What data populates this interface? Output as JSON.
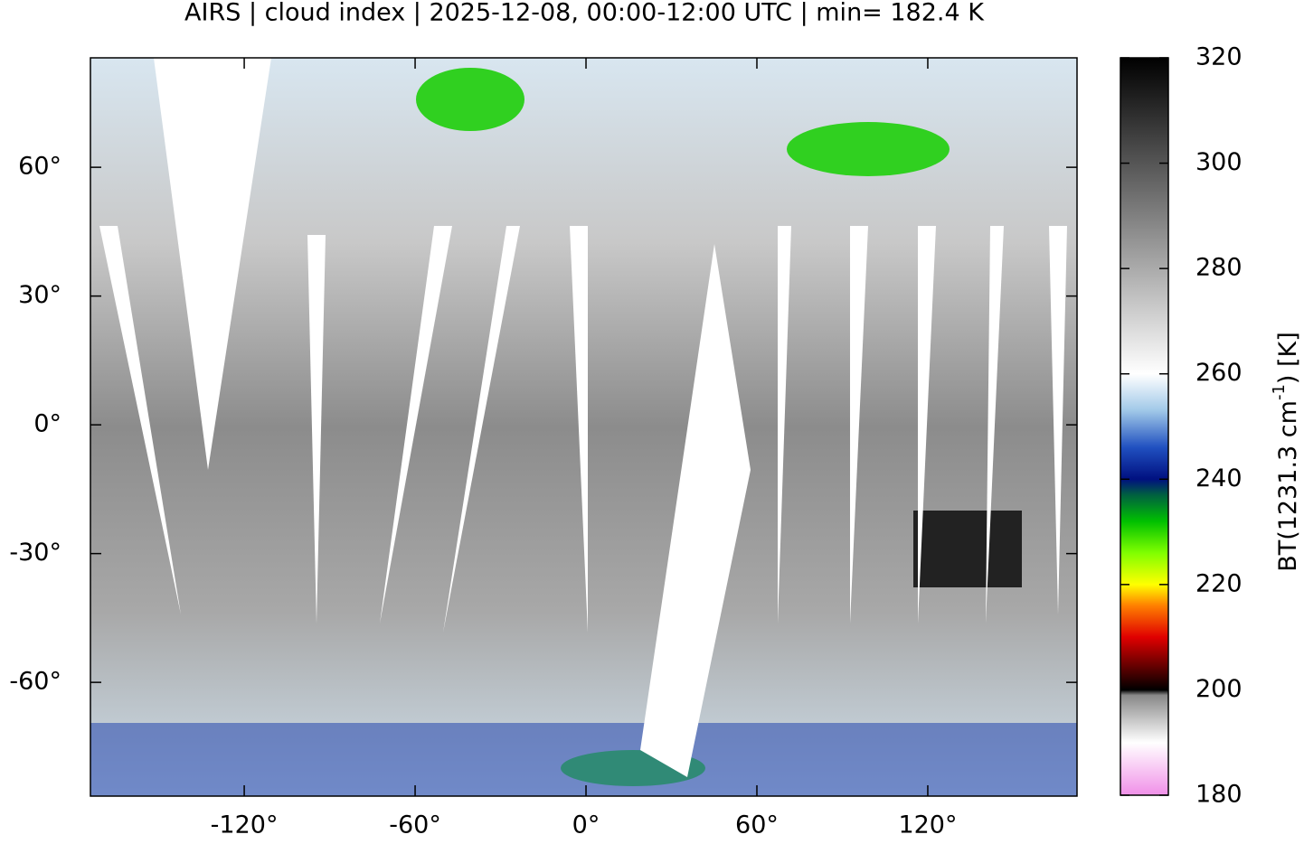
{
  "chart_data": {
    "type": "map",
    "title": "AIRS | cloud index | 2025-12-08, 00:00-12:00 UTC | min= 182.4 K",
    "xlim": [
      -174,
      172.4
    ],
    "ylim": [
      -86.5,
      85.5
    ],
    "xticks": [
      {
        "value": -120,
        "label": "-120°"
      },
      {
        "value": -60,
        "label": "-60°"
      },
      {
        "value": 0,
        "label": "0°"
      },
      {
        "value": 60,
        "label": "60°"
      },
      {
        "value": 120,
        "label": "120°"
      }
    ],
    "yticks": [
      {
        "value": 60,
        "label": "60°"
      },
      {
        "value": 30,
        "label": "30°"
      },
      {
        "value": 0,
        "label": "0°"
      },
      {
        "value": -30,
        "label": "-30°"
      },
      {
        "value": -60,
        "label": "-60°"
      }
    ],
    "colorbar": {
      "label": [
        "BT(1231.3 cm",
        "-1",
        ") [K]"
      ],
      "lim": [
        180,
        320
      ],
      "ticks": [
        180,
        200,
        220,
        240,
        260,
        280,
        300,
        320
      ],
      "stops": [
        [
          180,
          "#f090e8"
        ],
        [
          190,
          "#ffffff"
        ],
        [
          199,
          "#888888"
        ],
        [
          200,
          "#000000"
        ],
        [
          205,
          "#700000"
        ],
        [
          210,
          "#e00000"
        ],
        [
          216,
          "#ff8000"
        ],
        [
          220,
          "#ffff00"
        ],
        [
          226,
          "#80ff00"
        ],
        [
          232,
          "#00c000"
        ],
        [
          237,
          "#006040"
        ],
        [
          240,
          "#001080"
        ],
        [
          246,
          "#2050c0"
        ],
        [
          253,
          "#a0c8e8"
        ],
        [
          260,
          "#ffffff"
        ],
        [
          290,
          "#808080"
        ],
        [
          320,
          "#000000"
        ]
      ]
    }
  }
}
